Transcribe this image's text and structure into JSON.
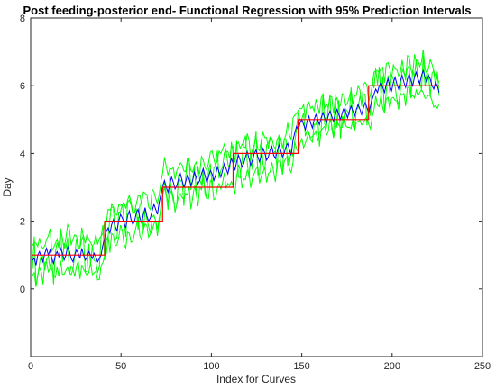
{
  "chart_data": {
    "type": "line",
    "title": "Post feeding-posterior end- Functional Regression with 95% Prediction Intervals",
    "xlabel": "Index for Curves",
    "ylabel": "Day",
    "xlim": [
      0,
      250
    ],
    "ylim": [
      -2,
      8
    ],
    "xticks": [
      0,
      50,
      100,
      150,
      200,
      250
    ],
    "yticks": [
      0,
      2,
      4,
      6,
      8
    ],
    "grid": false,
    "legend": "none",
    "colors": {
      "true_day": "#ff0000",
      "prediction": "#0000ff",
      "intervals": "#00ff00"
    },
    "series": [
      {
        "role": "true_day",
        "segments": [
          {
            "x": [
              1,
              41
            ],
            "y": 1
          },
          {
            "x": [
              41,
              73
            ],
            "y": 2
          },
          {
            "x": [
              73,
              112
            ],
            "y": 3
          },
          {
            "x": [
              112,
              148
            ],
            "y": 4
          },
          {
            "x": [
              148,
              187
            ],
            "y": 5
          },
          {
            "x": [
              187,
              226
            ],
            "y": 6
          }
        ]
      },
      {
        "role": "prediction",
        "x_start": 1,
        "x_end": 226,
        "values": [
          0.85,
          0.9,
          0.7,
          1.0,
          1.1,
          0.95,
          0.8,
          1.05,
          1.2,
          1.0,
          1.15,
          0.9,
          0.75,
          1.0,
          1.1,
          0.95,
          1.2,
          1.05,
          0.85,
          1.0,
          1.25,
          1.1,
          0.9,
          0.8,
          1.0,
          1.15,
          1.05,
          0.9,
          1.2,
          1.0,
          0.85,
          0.95,
          1.1,
          1.0,
          0.9,
          1.05,
          0.95,
          0.8,
          0.9,
          1.0,
          1.3,
          1.5,
          1.7,
          1.8,
          1.65,
          1.9,
          2.05,
          1.85,
          1.7,
          2.0,
          2.2,
          2.1,
          1.95,
          1.8,
          2.15,
          2.3,
          2.05,
          1.9,
          2.0,
          2.25,
          2.35,
          2.1,
          1.95,
          2.2,
          2.4,
          2.15,
          2.0,
          2.1,
          2.3,
          2.5,
          2.35,
          2.2,
          2.55,
          2.8,
          3.05,
          3.2,
          3.0,
          2.85,
          3.1,
          3.3,
          3.15,
          2.95,
          3.05,
          3.25,
          3.4,
          3.2,
          3.0,
          3.15,
          3.35,
          3.25,
          3.05,
          3.2,
          3.45,
          3.3,
          3.1,
          3.2,
          3.4,
          3.55,
          3.35,
          3.15,
          3.3,
          3.5,
          3.4,
          3.2,
          3.35,
          3.6,
          3.45,
          3.3,
          3.5,
          3.7,
          3.55,
          3.4,
          3.65,
          3.85,
          3.7,
          3.5,
          3.75,
          3.95,
          3.8,
          3.6,
          3.7,
          3.9,
          4.05,
          3.85,
          3.65,
          3.8,
          4.0,
          4.1,
          3.9,
          3.75,
          3.95,
          4.15,
          4.0,
          3.8,
          3.9,
          4.1,
          4.2,
          3.95,
          3.85,
          4.05,
          4.25,
          4.1,
          3.9,
          4.0,
          4.2,
          4.3,
          4.1,
          3.95,
          4.4,
          4.6,
          4.8,
          4.7,
          4.9,
          5.0,
          4.85,
          4.7,
          4.95,
          5.1,
          4.9,
          4.75,
          5.0,
          5.15,
          5.0,
          4.85,
          5.05,
          5.2,
          5.05,
          4.9,
          5.1,
          5.25,
          5.1,
          4.95,
          5.15,
          5.3,
          5.15,
          5.0,
          5.2,
          5.35,
          5.2,
          5.05,
          5.25,
          5.4,
          5.25,
          5.1,
          5.3,
          5.45,
          5.3,
          5.15,
          5.35,
          5.5,
          5.35,
          5.2,
          5.4,
          5.6,
          5.75,
          5.9,
          5.8,
          6.0,
          6.1,
          5.95,
          5.8,
          6.05,
          6.2,
          6.0,
          5.85,
          6.1,
          6.25,
          6.05,
          5.9,
          6.15,
          6.3,
          6.1,
          5.95,
          6.2,
          6.35,
          6.15,
          6.0,
          6.25,
          6.4,
          6.2,
          6.05,
          6.3,
          6.45,
          6.25,
          6.1,
          6.3,
          6.2,
          6.0,
          5.9,
          6.1,
          6.0,
          5.8
        ],
        "interval_halfwidth": 0.45
      }
    ]
  }
}
